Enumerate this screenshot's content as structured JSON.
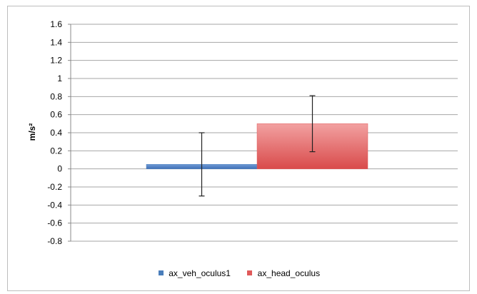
{
  "chart_data": {
    "type": "bar",
    "title": "",
    "xlabel": "",
    "ylabel": "m/s²",
    "ylim": [
      -0.8,
      1.6
    ],
    "yticks": [
      1.6,
      1.4,
      1.2,
      1,
      0.8,
      0.6,
      0.4,
      0.2,
      0,
      -0.2,
      -0.4,
      -0.6,
      -0.8
    ],
    "grid": true,
    "legend_position": "bottom",
    "series": [
      {
        "name": "ax_veh_oculus1",
        "value": 0.05,
        "error_low": -0.3,
        "error_high": 0.4,
        "color": "#4a7ebb"
      },
      {
        "name": "ax_head_oculus",
        "value": 0.5,
        "error_low": 0.19,
        "error_high": 0.81,
        "color": "#e05a5a"
      }
    ]
  }
}
